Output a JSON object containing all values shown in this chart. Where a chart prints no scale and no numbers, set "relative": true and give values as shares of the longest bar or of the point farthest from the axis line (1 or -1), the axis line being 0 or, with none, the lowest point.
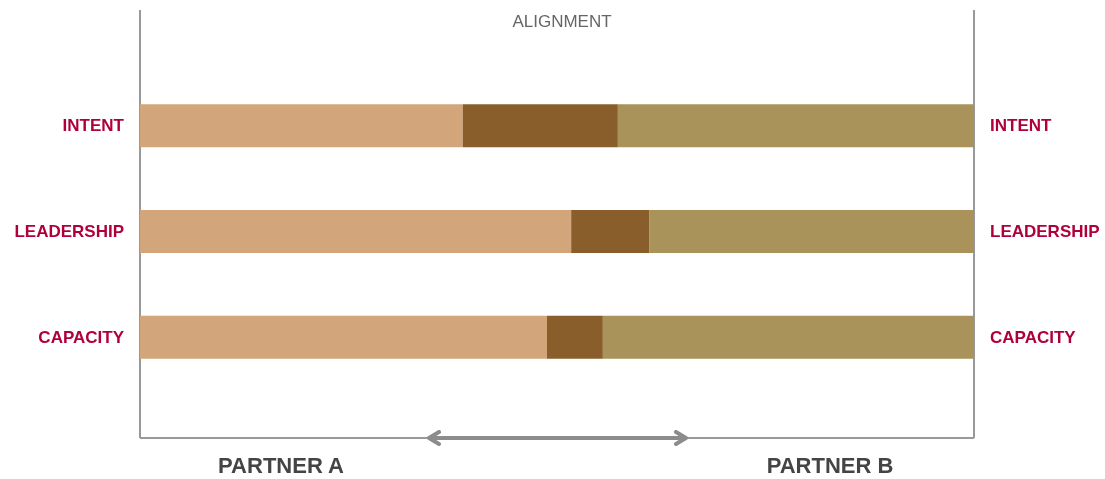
{
  "chart_data": {
    "type": "bar",
    "orientation": "horizontal",
    "stacked": true,
    "relative": true,
    "title": "ALIGNMENT",
    "categories": [
      "INTENT",
      "LEADERSHIP",
      "CAPACITY"
    ],
    "series": [
      {
        "color": "#d2a57a",
        "values": [
          0.387,
          0.517,
          0.488
        ]
      },
      {
        "color": "#8a5e2b",
        "values": [
          0.186,
          0.094,
          0.067
        ]
      },
      {
        "color": "#a9935b",
        "values": [
          0.427,
          0.389,
          0.445
        ]
      }
    ],
    "annotations": [
      "PARTNER A",
      "PARTNER B"
    ]
  }
}
